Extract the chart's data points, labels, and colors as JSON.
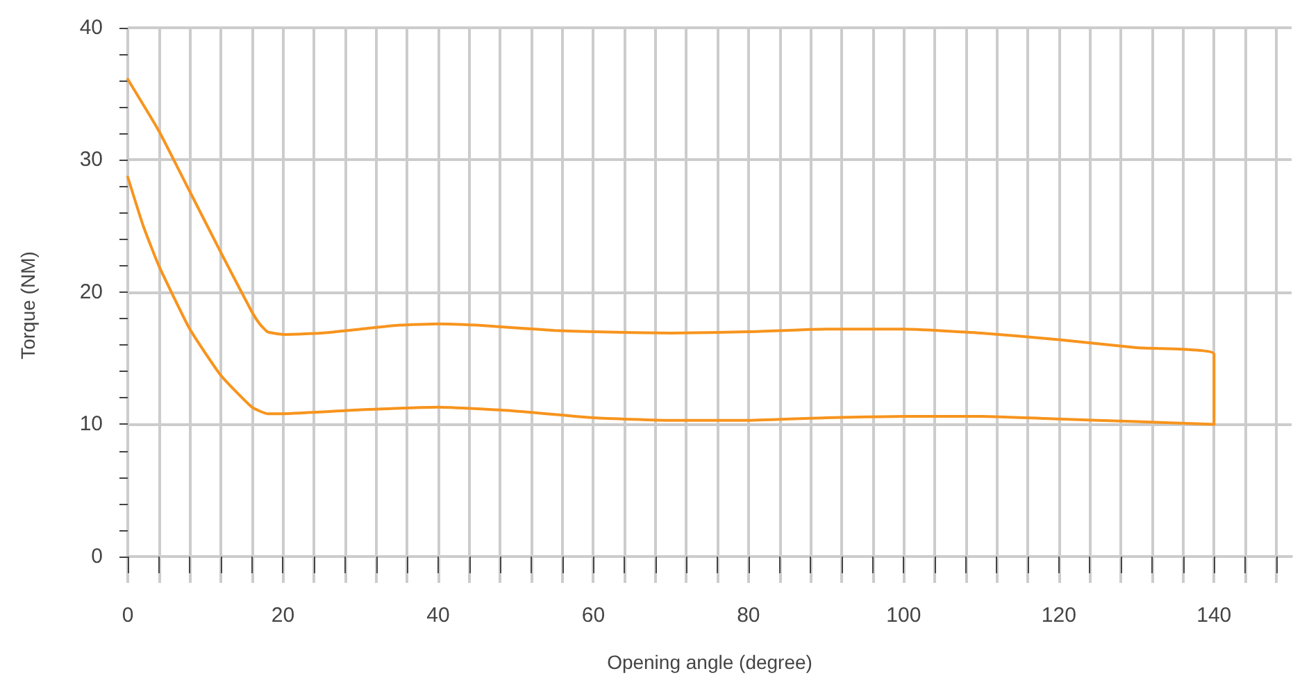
{
  "chart_data": {
    "type": "line",
    "xlabel": "Opening angle (degree)",
    "ylabel": "Torque (NM)",
    "xlim": [
      0,
      150
    ],
    "ylim": [
      -2,
      40
    ],
    "xticks": [
      0,
      {
        "value": 4,
        "label": null
      },
      {
        "value": 8,
        "label": null
      },
      {
        "value": 12,
        "label": null
      },
      {
        "value": 16,
        "label": null
      },
      20,
      {
        "value": 24,
        "label": null
      },
      {
        "value": 28,
        "label": null
      },
      {
        "value": 32,
        "label": null
      },
      {
        "value": 36,
        "label": null
      },
      40,
      {
        "value": 44,
        "label": null
      },
      {
        "value": 48,
        "label": null
      },
      {
        "value": 52,
        "label": null
      },
      {
        "value": 56,
        "label": null
      },
      60,
      {
        "value": 64,
        "label": null
      },
      {
        "value": 68,
        "label": null
      },
      {
        "value": 72,
        "label": null
      },
      {
        "value": 76,
        "label": null
      },
      80,
      {
        "value": 84,
        "label": null
      },
      {
        "value": 88,
        "label": null
      },
      {
        "value": 92,
        "label": null
      },
      {
        "value": 96,
        "label": null
      },
      100,
      {
        "value": 104,
        "label": null
      },
      {
        "value": 108,
        "label": null
      },
      {
        "value": 112,
        "label": null
      },
      {
        "value": 116,
        "label": null
      },
      120,
      {
        "value": 124,
        "label": null
      },
      {
        "value": 128,
        "label": null
      },
      {
        "value": 132,
        "label": null
      },
      {
        "value": 136,
        "label": null
      },
      140,
      {
        "value": 144,
        "label": null
      },
      {
        "value": 148,
        "label": null
      }
    ],
    "yticks": [
      0,
      {
        "value": 2,
        "label": null
      },
      {
        "value": 4,
        "label": null
      },
      {
        "value": 6,
        "label": null
      },
      {
        "value": 8,
        "label": null
      },
      10,
      {
        "value": 12,
        "label": null
      },
      {
        "value": 14,
        "label": null
      },
      {
        "value": 16,
        "label": null
      },
      {
        "value": 18,
        "label": null
      },
      20,
      {
        "value": 22,
        "label": null
      },
      {
        "value": 24,
        "label": null
      },
      {
        "value": 26,
        "label": null
      },
      {
        "value": 28,
        "label": null
      },
      30,
      {
        "value": 32,
        "label": null
      },
      {
        "value": 34,
        "label": null
      },
      {
        "value": 36,
        "label": null
      },
      {
        "value": 38,
        "label": null
      },
      40
    ],
    "grid": true,
    "marker": "none",
    "line_style": "solid",
    "series": [
      {
        "color": "#f7941d",
        "x": [
          0,
          4,
          8,
          12,
          16,
          17,
          18,
          20,
          25,
          30,
          35,
          40,
          45,
          50,
          55,
          60,
          70,
          80,
          90,
          100,
          110,
          120,
          130,
          140,
          140
        ],
        "values": [
          36.1,
          32.2,
          27.6,
          23,
          18.5,
          17.6,
          17.0,
          16.8,
          16.9,
          17.2,
          17.5,
          17.6,
          17.5,
          17.3,
          17.1,
          17.0,
          16.9,
          17.0,
          17.2,
          17.2,
          16.9,
          16.4,
          15.8,
          15.3,
          10.0
        ]
      },
      {
        "color": "#f7941d",
        "x": [
          0,
          2,
          4,
          8,
          12,
          16,
          18,
          20,
          30,
          40,
          50,
          60,
          70,
          80,
          90,
          100,
          110,
          120,
          130,
          140
        ],
        "values": [
          28.7,
          25,
          22,
          17.2,
          13.7,
          11.3,
          10.8,
          10.8,
          11.1,
          11.3,
          11.0,
          10.5,
          10.3,
          10.3,
          10.5,
          10.6,
          10.6,
          10.4,
          10.2,
          10.0
        ]
      }
    ]
  }
}
